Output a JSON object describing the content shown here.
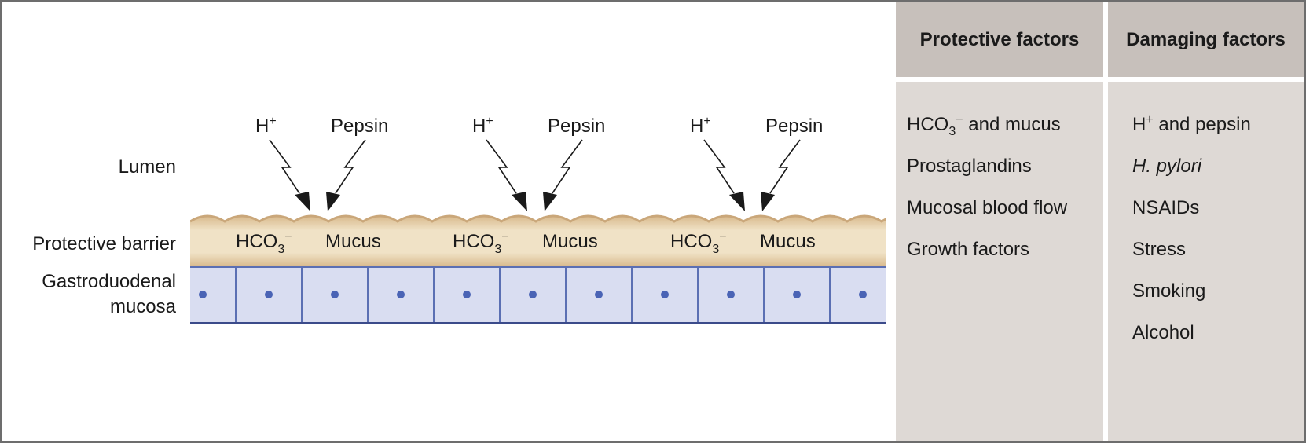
{
  "diagram": {
    "left_labels": {
      "lumen": "Lumen",
      "barrier": "Protective barrier",
      "mucosa_line1": "Gastroduodenal",
      "mucosa_line2": "mucosa"
    },
    "attack_groups": [
      {
        "h_label": "H",
        "h_superscript": "+",
        "pepsin_label": "Pepsin",
        "hco3_label": "HCO",
        "hco3_sub": "3",
        "hco3_sup": "−",
        "mucus_label": "Mucus"
      },
      {
        "h_label": "H",
        "h_superscript": "+",
        "pepsin_label": "Pepsin",
        "hco3_label": "HCO",
        "hco3_sub": "3",
        "hco3_sup": "−",
        "mucus_label": "Mucus"
      },
      {
        "h_label": "H",
        "h_superscript": "+",
        "pepsin_label": "Pepsin",
        "hco3_label": "HCO",
        "hco3_sub": "3",
        "hco3_sup": "−",
        "mucus_label": "Mucus"
      }
    ],
    "colors": {
      "barrier_fill": "#ecdcbc",
      "barrier_edge": "#caa77a",
      "cell_fill": "#d9ddf1",
      "cell_border": "#5b6fb3",
      "nucleus": "#4a63b5",
      "arrow": "#1a1a1a"
    }
  },
  "protective": {
    "title": "Protective factors",
    "items": [
      {
        "text": "HCO",
        "sub": "3",
        "sup": "−",
        "rest": " and mucus"
      },
      {
        "text": "Prostaglandins"
      },
      {
        "text": "Mucosal blood flow"
      },
      {
        "text": "Growth factors"
      }
    ]
  },
  "damaging": {
    "title": "Damaging factors",
    "items": [
      {
        "text": "H",
        "sup": "+",
        "rest": " and pepsin"
      },
      {
        "text": "H. pylori",
        "italic": true
      },
      {
        "text": "NSAIDs"
      },
      {
        "text": "Stress"
      },
      {
        "text": "Smoking"
      },
      {
        "text": "Alcohol"
      }
    ]
  }
}
